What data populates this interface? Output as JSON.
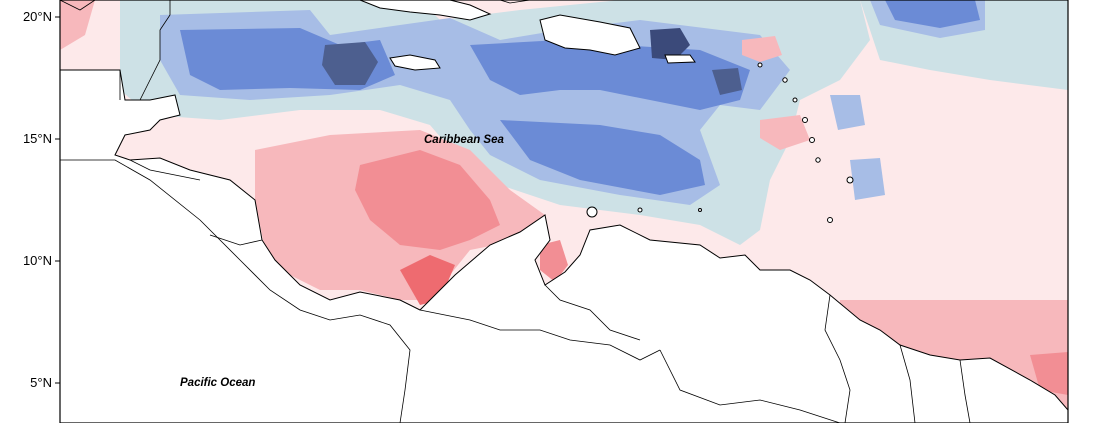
{
  "map": {
    "labels": {
      "caribbean_sea": "Caribbean Sea",
      "pacific_ocean": "Pacific Ocean"
    },
    "y_axis_ticks": [
      "20°N",
      "15°N",
      "10°N",
      "5°N"
    ],
    "colors": {
      "strong_negative": "#3b4a7a",
      "negative": "#6b8bd6",
      "mild_negative": "#a7bde6",
      "weak_negative": "#cde1e6",
      "neutral": "#ffffff",
      "weak_positive": "#fde3e6",
      "mild_positive": "#f7b8bc",
      "positive": "#f28e94",
      "strong_positive": "#ee6b70",
      "land": "#ffffff",
      "coastline": "#000000"
    }
  }
}
